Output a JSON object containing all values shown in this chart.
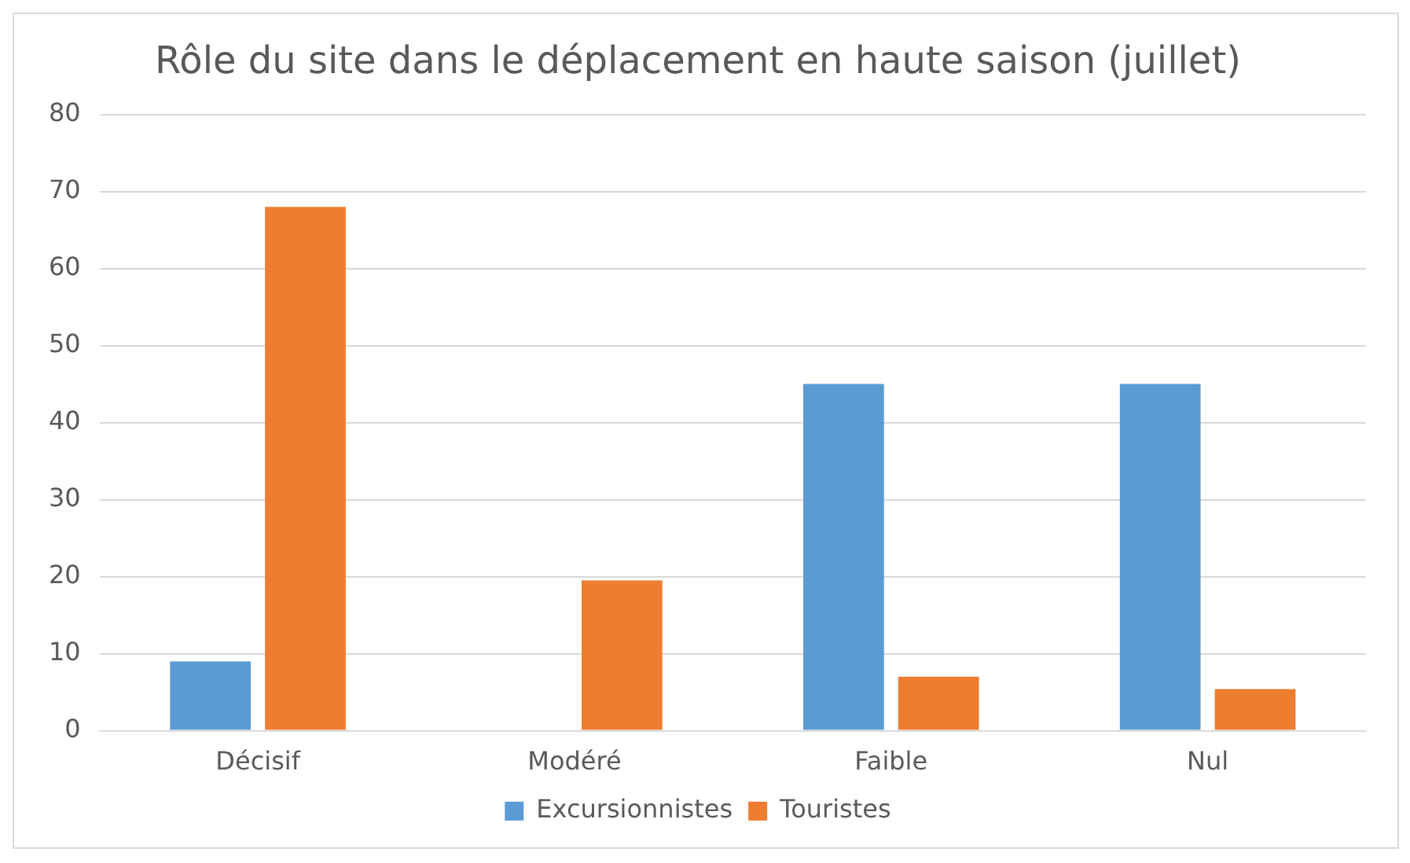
{
  "chart_data": {
    "type": "bar",
    "title": "Rôle du site dans le déplacement en haute saison (juillet)",
    "categories": [
      "Décisif",
      "Modéré",
      "Faible",
      "Nul"
    ],
    "series": [
      {
        "name": "Excursionnistes",
        "color": "#5b9bd5",
        "values": [
          9,
          0,
          45,
          45
        ]
      },
      {
        "name": "Touristes",
        "color": "#ed7d31",
        "values": [
          68,
          19.5,
          7,
          5.4
        ]
      }
    ],
    "ylim": [
      0,
      80
    ],
    "yticks": [
      0,
      10,
      20,
      30,
      40,
      50,
      60,
      70,
      80
    ],
    "grid": "y",
    "legend": "bottom"
  }
}
